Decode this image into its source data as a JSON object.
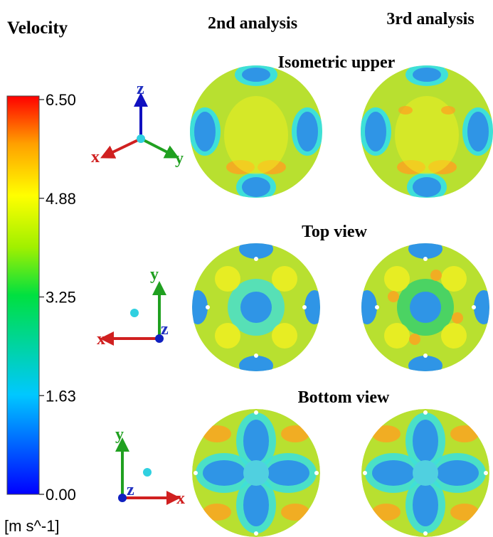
{
  "legend": {
    "title": "Velocity",
    "ticks": [
      "6.50",
      "4.88",
      "3.25",
      "1.63",
      "0.00"
    ],
    "unit": "[m s^-1]"
  },
  "columns": [
    "2nd analysis",
    "3rd analysis"
  ],
  "rows": [
    "Isometric upper",
    "Top view",
    "Bottom view"
  ],
  "triads": [
    {
      "labels": [
        "z",
        "x",
        "y"
      ]
    },
    {
      "labels": [
        "y",
        "x",
        "z"
      ]
    },
    {
      "labels": [
        "y",
        "z",
        "x"
      ]
    }
  ]
}
